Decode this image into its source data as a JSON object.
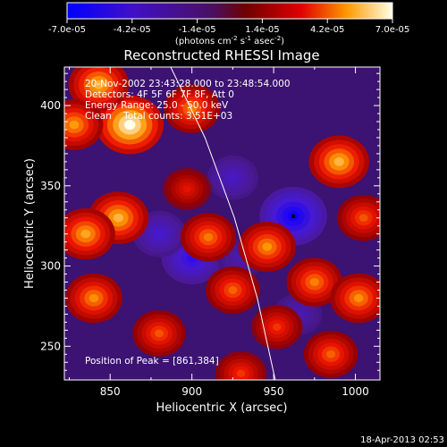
{
  "chart_data": {
    "type": "heatmap",
    "title": "Reconstructed RHESSI Image",
    "xlabel": "Heliocentric X (arcsec)",
    "ylabel": "Heliocentric Y (arcsec)",
    "xlim": [
      822,
      1015
    ],
    "ylim": [
      229,
      424
    ],
    "xticks": [
      850,
      900,
      950,
      1000
    ],
    "yticks": [
      250,
      300,
      350,
      400
    ],
    "colorbar": {
      "range": [
        -7e-05,
        7e-05
      ],
      "tick_labels": [
        "-7.0e-05",
        "-4.2e-05",
        "-1.4e-05",
        "1.4e-05",
        "4.2e-05",
        "7.0e-05"
      ],
      "units_label_parts": [
        "(photons cm",
        "-2",
        " s",
        "-1",
        " asec",
        "-2",
        ")"
      ]
    },
    "annotations": {
      "time_range": "20-Nov-2002 23:43:28.000 to 23:48:54.000",
      "detectors": "Detectors: 4F 5F 6F 7F 8F, Att 0",
      "energy_range": "Energy Range: 25.0 - 50.0 keV",
      "clean_counts": "Clean    Total counts: 3.51E+03",
      "peak_position": "Position of Peak = [861,384]"
    },
    "peak": [
      861,
      384
    ],
    "limb_line": [
      [
        887,
        424
      ],
      [
        908,
        380
      ],
      [
        926,
        330
      ],
      [
        940,
        280
      ],
      [
        951,
        229
      ]
    ],
    "bright_sources": [
      {
        "x": 862,
        "y": 388,
        "value": 7e-05
      },
      {
        "x": 843,
        "y": 413,
        "value": 5.5e-05
      },
      {
        "x": 828,
        "y": 388,
        "value": 5e-05
      },
      {
        "x": 855,
        "y": 330,
        "value": 5.5e-05
      },
      {
        "x": 835,
        "y": 320,
        "value": 5.2e-05
      },
      {
        "x": 840,
        "y": 280,
        "value": 4.8e-05
      },
      {
        "x": 900,
        "y": 398,
        "value": 4.6e-05
      },
      {
        "x": 910,
        "y": 318,
        "value": 4.5e-05
      },
      {
        "x": 946,
        "y": 312,
        "value": 4.9e-05
      },
      {
        "x": 925,
        "y": 285,
        "value": 4.2e-05
      },
      {
        "x": 990,
        "y": 365,
        "value": 5.5e-05
      },
      {
        "x": 975,
        "y": 290,
        "value": 4.6e-05
      },
      {
        "x": 1002,
        "y": 280,
        "value": 4.8e-05
      },
      {
        "x": 1005,
        "y": 330,
        "value": 4e-05
      },
      {
        "x": 985,
        "y": 245,
        "value": 4.2e-05
      },
      {
        "x": 930,
        "y": 233,
        "value": 3.6e-05
      },
      {
        "x": 880,
        "y": 258,
        "value": 4e-05
      },
      {
        "x": 952,
        "y": 262,
        "value": 3.6e-05
      },
      {
        "x": 897,
        "y": 348,
        "value": 3e-05
      }
    ],
    "dark_sources": [
      {
        "x": 962,
        "y": 331,
        "value": -7e-05
      },
      {
        "x": 900,
        "y": 305,
        "value": -5.5e-05
      },
      {
        "x": 880,
        "y": 320,
        "value": -4e-05
      },
      {
        "x": 925,
        "y": 355,
        "value": -3.6e-05
      },
      {
        "x": 965,
        "y": 270,
        "value": -3e-05
      },
      {
        "x": 930,
        "y": 305,
        "value": -2.8e-05
      }
    ],
    "footer_date": "18-Apr-2013 02:53"
  }
}
